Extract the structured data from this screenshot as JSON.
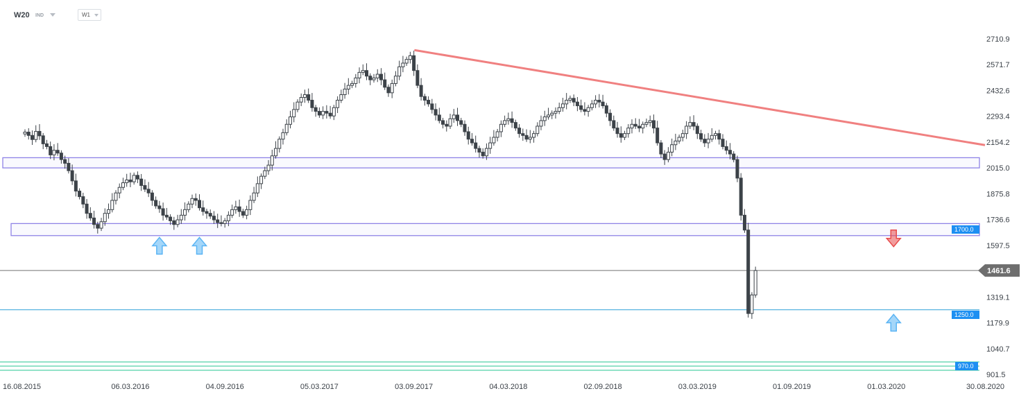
{
  "header": {
    "symbol": "W20",
    "instrument_type": "IND",
    "timeframe": "W1"
  },
  "chart_data": {
    "type": "candlestick",
    "y_ticks": [
      "2710.9",
      "2571.7",
      "2432.6",
      "2293.4",
      "2154.2",
      "2015.0",
      "1875.8",
      "1736.6",
      "1597.5",
      "1319.1",
      "1179.9",
      "1040.7",
      "901.5"
    ],
    "ylim": [
      901.5,
      2710.9
    ],
    "x_ticks": [
      "16.08.2015",
      "06.03.2016",
      "04.09.2016",
      "05.03.2017",
      "03.09.2017",
      "04.03.2018",
      "02.09.2018",
      "03.03.2019",
      "01.09.2019",
      "01.03.2020",
      "30.08.2020"
    ],
    "current_price": "1461.6",
    "levels": [
      {
        "label": "1700.0",
        "value": 1700.0,
        "color": "#1d8ff2"
      },
      {
        "label": "1250.0",
        "value": 1250.0,
        "color": "#1d8ff2"
      },
      {
        "label": "970.0",
        "value": 970.0,
        "color": "#1d8ff2"
      }
    ],
    "zones": [
      {
        "from": 2015.0,
        "to": 2070.0,
        "color": "#8e82e6"
      },
      {
        "from": 1650.0,
        "to": 1715.0,
        "color": "#8e82e6"
      }
    ],
    "trendline": {
      "from": [
        "04.09.2017",
        2650
      ],
      "to": [
        "07.09.2020",
        2138
      ],
      "color": "#f08080"
    },
    "arrows": [
      {
        "date": "01.05.2016",
        "value": 1640,
        "direction": "up",
        "color": "#5ab4f4"
      },
      {
        "date": "17.07.2016",
        "value": 1640,
        "direction": "up",
        "color": "#5ab4f4"
      },
      {
        "date": "15.03.2020",
        "value": 1680,
        "direction": "down",
        "color": "#e84c4c"
      },
      {
        "date": "15.03.2020",
        "value": 1225,
        "direction": "up",
        "color": "#5ab4f4"
      }
    ],
    "candles": [
      2208,
      2190,
      2168,
      2212,
      2188,
      2145,
      2130,
      2085,
      2110,
      2095,
      2060,
      2040,
      2000,
      1945,
      1890,
      1860,
      1820,
      1770,
      1745,
      1710,
      1690,
      1725,
      1770,
      1790,
      1840,
      1880,
      1910,
      1935,
      1950,
      1940,
      1975,
      1955,
      1920,
      1900,
      1880,
      1840,
      1810,
      1795,
      1760,
      1750,
      1730,
      1710,
      1735,
      1760,
      1790,
      1820,
      1850,
      1840,
      1800,
      1780,
      1770,
      1755,
      1735,
      1720,
      1715,
      1730,
      1760,
      1790,
      1805,
      1780,
      1760,
      1790,
      1840,
      1880,
      1930,
      1970,
      2000,
      2030,
      2080,
      2120,
      2170,
      2205,
      2250,
      2290,
      2330,
      2370,
      2395,
      2410,
      2380,
      2340,
      2320,
      2300,
      2320,
      2310,
      2295,
      2340,
      2380,
      2410,
      2440,
      2460,
      2470,
      2500,
      2530,
      2540,
      2510,
      2490,
      2500,
      2520,
      2490,
      2450,
      2420,
      2470,
      2510,
      2560,
      2580,
      2600,
      2620,
      2540,
      2460,
      2400,
      2380,
      2360,
      2330,
      2300,
      2270,
      2250,
      2240,
      2280,
      2300,
      2270,
      2250,
      2210,
      2170,
      2150,
      2120,
      2100,
      2080,
      2120,
      2150,
      2180,
      2210,
      2250,
      2270,
      2280,
      2260,
      2230,
      2200,
      2190,
      2170,
      2180,
      2200,
      2240,
      2270,
      2290,
      2300,
      2310,
      2320,
      2340,
      2360,
      2380,
      2390,
      2370,
      2350,
      2330,
      2320,
      2340,
      2360,
      2380,
      2370,
      2350,
      2310,
      2270,
      2230,
      2200,
      2180,
      2200,
      2230,
      2250,
      2240,
      2230,
      2250,
      2260,
      2270,
      2230,
      2150,
      2090,
      2060,
      2100,
      2140,
      2160,
      2180,
      2200,
      2240,
      2260,
      2240,
      2200,
      2170,
      2150,
      2170,
      2190,
      2200,
      2170,
      2130,
      2110,
      2090,
      2060,
      1960,
      1760,
      1680,
      1230,
      1330,
      1461.6
    ],
    "candle_start": "16.08.2015"
  }
}
